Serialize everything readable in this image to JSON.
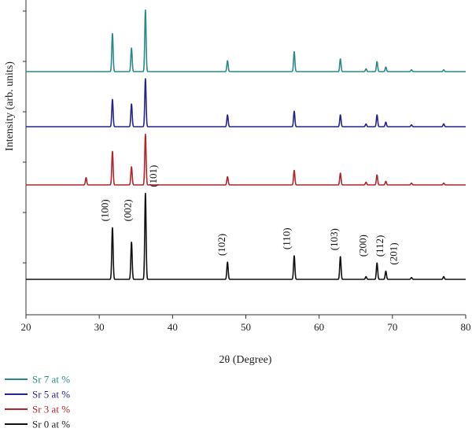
{
  "chart_data": {
    "type": "line",
    "title": "",
    "xlabel": "2θ (Degree)",
    "ylabel": "Intensity (arb. units)",
    "xlim": [
      20,
      80
    ],
    "xticks": [
      20,
      30,
      40,
      50,
      60,
      70,
      80
    ],
    "grid": false,
    "legend_position": "bottom-left",
    "series": [
      {
        "name": "Sr 7 at %",
        "color": "#2a8a8a",
        "baseline": 3,
        "peaks": [
          [
            31.8,
            0.42
          ],
          [
            34.4,
            0.26
          ],
          [
            36.3,
            0.68
          ],
          [
            47.5,
            0.12
          ],
          [
            56.6,
            0.22
          ],
          [
            62.9,
            0.14
          ],
          [
            66.4,
            0.03
          ],
          [
            67.9,
            0.11
          ],
          [
            69.1,
            0.05
          ],
          [
            72.6,
            0.02
          ],
          [
            77.0,
            0.02
          ]
        ]
      },
      {
        "name": "Sr 5 at %",
        "color": "#24248a",
        "baseline": 2,
        "peaks": [
          [
            31.8,
            0.3
          ],
          [
            34.4,
            0.25
          ],
          [
            36.3,
            0.53
          ],
          [
            47.5,
            0.13
          ],
          [
            56.6,
            0.17
          ],
          [
            62.9,
            0.13
          ],
          [
            66.4,
            0.03
          ],
          [
            67.9,
            0.13
          ],
          [
            69.1,
            0.05
          ],
          [
            72.6,
            0.02
          ],
          [
            77.0,
            0.03
          ]
        ]
      },
      {
        "name": "Sr 3 at %",
        "color": "#b0262a",
        "baseline": 1,
        "peaks": [
          [
            28.2,
            0.08
          ],
          [
            31.8,
            0.37
          ],
          [
            34.4,
            0.2
          ],
          [
            36.3,
            0.56
          ],
          [
            47.5,
            0.09
          ],
          [
            56.6,
            0.16
          ],
          [
            62.9,
            0.13
          ],
          [
            66.4,
            0.03
          ],
          [
            67.9,
            0.11
          ],
          [
            69.1,
            0.04
          ],
          [
            72.6,
            0.02
          ],
          [
            77.0,
            0.02
          ]
        ]
      },
      {
        "name": "Sr 0 at %",
        "color": "#111111",
        "baseline": 0,
        "peaks": [
          [
            31.8,
            0.57
          ],
          [
            34.4,
            0.41
          ],
          [
            36.3,
            0.95
          ],
          [
            47.5,
            0.19
          ],
          [
            56.6,
            0.26
          ],
          [
            62.9,
            0.25
          ],
          [
            66.4,
            0.03
          ],
          [
            67.9,
            0.18
          ],
          [
            69.1,
            0.09
          ],
          [
            72.6,
            0.02
          ],
          [
            77.0,
            0.03
          ]
        ]
      }
    ],
    "annotations": [
      {
        "text": "(100)",
        "x": 30.8
      },
      {
        "text": "(002)",
        "x": 33.9
      },
      {
        "text": "(101)",
        "x": 37.4
      },
      {
        "text": "(102)",
        "x": 46.7
      },
      {
        "text": "(110)",
        "x": 55.6
      },
      {
        "text": "(103)",
        "x": 62.1
      },
      {
        "text": "(200)",
        "x": 66.0
      },
      {
        "text": "(112)",
        "x": 68.3
      },
      {
        "text": "(201)",
        "x": 70.2
      }
    ]
  }
}
